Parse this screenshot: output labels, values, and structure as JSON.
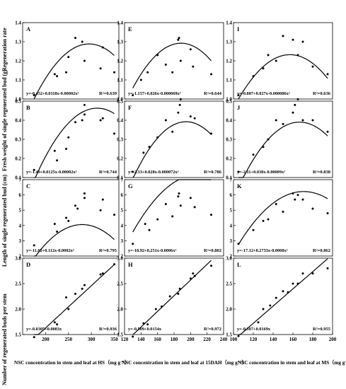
{
  "y_axis_labels": {
    "regeneration_rate": "Regeneration rate",
    "fresh_weight": "Fresh weight of single regenerated bud (g)",
    "length": "Length of single regenerated bud (cm)",
    "number": "Number of regenerated buds per stem"
  },
  "x_axis_labels": {
    "hs": "NSC concentration in stem and leaf at HS（mg g⁻¹）",
    "dah": "NSC concentration in stem and leaf at 15DAH（mg g⁻¹）",
    "ms": "NSC concentration in stem and leaf at MS（mg g⁻¹）"
  },
  "chart_data": [
    {
      "panel": "A",
      "type": "scatter",
      "row": 0,
      "col": 0,
      "xlim": [
        150,
        360
      ],
      "ylim": [
        1.0,
        1.4
      ],
      "yticks": [
        "1.0",
        "1.1",
        "1.2",
        "1.3",
        "1.4"
      ],
      "fit": [
        -0.452,
        0.0118,
        -2e-05
      ],
      "equation": "y=-0.452+0.0118x-0.00002x²",
      "r2": "R²=0.639",
      "points": [
        [
          175,
          1.02
        ],
        [
          220,
          1.13
        ],
        [
          225,
          1.12
        ],
        [
          245,
          1.14
        ],
        [
          250,
          1.22
        ],
        [
          265,
          1.32
        ],
        [
          280,
          1.3
        ],
        [
          285,
          1.2
        ],
        [
          320,
          1.16
        ],
        [
          325,
          1.27
        ],
        [
          350,
          1.14
        ]
      ]
    },
    {
      "panel": "E",
      "type": "scatter",
      "row": 0,
      "col": 1,
      "xlim": [
        120,
        240
      ],
      "ylim": [
        1.0,
        1.4
      ],
      "yticks": [
        "1.0",
        "1.1",
        "1.2",
        "1.3",
        "1.4"
      ],
      "fit": [
        -1.157,
        0.026,
        -6.9e-05
      ],
      "equation": "y=-1.157+0.026x-0.000069x²",
      "r2": "R²=0.644",
      "points": [
        [
          130,
          1.02
        ],
        [
          140,
          1.1
        ],
        [
          148,
          1.14
        ],
        [
          160,
          1.23
        ],
        [
          170,
          1.18
        ],
        [
          178,
          1.14
        ],
        [
          185,
          1.31
        ],
        [
          186,
          1.32
        ],
        [
          188,
          1.2
        ],
        [
          200,
          1.26
        ],
        [
          203,
          1.17
        ],
        [
          225,
          1.13
        ]
      ]
    },
    {
      "panel": "I",
      "type": "scatter",
      "row": 0,
      "col": 2,
      "xlim": [
        100,
        200
      ],
      "ylim": [
        1.0,
        1.4
      ],
      "yticks": [
        "1.0",
        "1.1",
        "1.2",
        "1.3",
        "1.4"
      ],
      "fit": [
        -0.887,
        0.027,
        -8.6e-05
      ],
      "equation": "y=-0.887+0.027x-0.000086x²",
      "r2": "R²=0.636",
      "points": [
        [
          105,
          1.02
        ],
        [
          120,
          1.12
        ],
        [
          130,
          1.16
        ],
        [
          135,
          1.23
        ],
        [
          143,
          1.2
        ],
        [
          150,
          1.33
        ],
        [
          160,
          1.31
        ],
        [
          165,
          1.23
        ],
        [
          170,
          1.3
        ],
        [
          180,
          1.17
        ],
        [
          195,
          1.13
        ]
      ]
    },
    {
      "panel": "B",
      "type": "scatter",
      "row": 1,
      "col": 0,
      "xlim": [
        150,
        360
      ],
      "ylim": [
        0.1,
        0.5
      ],
      "yticks": [
        "0.1",
        "0.2",
        "0.3",
        "0.4",
        "0.5"
      ],
      "fit": [
        -1.49,
        0.0125,
        -2e-05
      ],
      "equation": "y=-1.49+0.0125x-0.00002x²",
      "r2": "R²=0.744",
      "points": [
        [
          175,
          0.14
        ],
        [
          220,
          0.24
        ],
        [
          225,
          0.19
        ],
        [
          245,
          0.25
        ],
        [
          250,
          0.31
        ],
        [
          265,
          0.39
        ],
        [
          280,
          0.4
        ],
        [
          285,
          0.43
        ],
        [
          285,
          0.48
        ],
        [
          320,
          0.4
        ],
        [
          325,
          0.41
        ],
        [
          350,
          0.33
        ]
      ]
    },
    {
      "panel": "F",
      "type": "scatter",
      "row": 1,
      "col": 1,
      "xlim": [
        120,
        240
      ],
      "ylim": [
        0.1,
        0.5
      ],
      "yticks": [
        "0.1",
        "0.2",
        "0.3",
        "0.4",
        "0.5"
      ],
      "fit": [
        -2.33,
        0.028,
        -7.2e-05
      ],
      "equation": "y=-2.33+0.028x-0.000072x²",
      "r2": "R²=0.786",
      "points": [
        [
          130,
          0.13
        ],
        [
          143,
          0.23
        ],
        [
          150,
          0.26
        ],
        [
          160,
          0.31
        ],
        [
          170,
          0.4
        ],
        [
          178,
          0.34
        ],
        [
          185,
          0.44
        ],
        [
          187,
          0.48
        ],
        [
          188,
          0.51
        ],
        [
          200,
          0.42
        ],
        [
          205,
          0.41
        ],
        [
          225,
          0.33
        ]
      ]
    },
    {
      "panel": "J",
      "type": "scatter",
      "row": 1,
      "col": 2,
      "xlim": [
        100,
        200
      ],
      "ylim": [
        0.1,
        0.5
      ],
      "yticks": [
        "0.1",
        "0.2",
        "0.3",
        "0.4",
        "0.5"
      ],
      "fit": [
        -2.11,
        0.03,
        -9e-05
      ],
      "equation": "y=-2.11+0.030x-0.00009x²",
      "r2": "R²=0.838",
      "points": [
        [
          105,
          0.13
        ],
        [
          120,
          0.22
        ],
        [
          130,
          0.26
        ],
        [
          135,
          0.3
        ],
        [
          143,
          0.4
        ],
        [
          150,
          0.38
        ],
        [
          160,
          0.44
        ],
        [
          162,
          0.48
        ],
        [
          165,
          0.51
        ],
        [
          170,
          0.4
        ],
        [
          180,
          0.4
        ],
        [
          195,
          0.34
        ]
      ]
    },
    {
      "panel": "C",
      "type": "scatter",
      "row": 2,
      "col": 0,
      "xlim": [
        150,
        360
      ],
      "ylim": [
        2,
        7
      ],
      "yticks": [
        "2",
        "3",
        "4",
        "5",
        "6",
        "7"
      ],
      "fit": [
        -11.62,
        0.112,
        -0.0002
      ],
      "equation": "y=-11.62+0.112x-0.0002x²",
      "r2": "R²=0.795",
      "points": [
        [
          175,
          2.7
        ],
        [
          220,
          4.1
        ],
        [
          225,
          3.6
        ],
        [
          245,
          4.5
        ],
        [
          250,
          4.3
        ],
        [
          265,
          5.3
        ],
        [
          270,
          5.1
        ],
        [
          285,
          5.8
        ],
        [
          285,
          6.1
        ],
        [
          320,
          5.0
        ],
        [
          325,
          5.7
        ],
        [
          350,
          4.7
        ]
      ]
    },
    {
      "panel": "G",
      "type": "scatter",
      "row": 2,
      "col": 1,
      "xlim": [
        120,
        240
      ],
      "ylim": [
        2,
        7
      ],
      "yticks": [
        "2",
        "3",
        "4",
        "5",
        "6",
        "7"
      ],
      "fit": [
        -18.92,
        0.251,
        -0.0006
      ],
      "equation": "y=-18.92+0.251x-0.0006x²",
      "r2": "R²=0.802",
      "points": [
        [
          130,
          2.8
        ],
        [
          145,
          4.1
        ],
        [
          150,
          3.7
        ],
        [
          160,
          4.4
        ],
        [
          170,
          5.4
        ],
        [
          178,
          4.6
        ],
        [
          185,
          5.9
        ],
        [
          186,
          6.1
        ],
        [
          188,
          5.3
        ],
        [
          200,
          5.8
        ],
        [
          205,
          5.2
        ],
        [
          225,
          4.7
        ]
      ]
    },
    {
      "panel": "K",
      "type": "scatter",
      "row": 2,
      "col": 2,
      "xlim": [
        100,
        200
      ],
      "ylim": [
        2,
        7
      ],
      "yticks": [
        "2",
        "3",
        "4",
        "5",
        "6",
        "7"
      ],
      "fit": [
        -17.12,
        0.2733,
        -0.0008
      ],
      "equation": "y=-17.12+0.2733x-0.0008x²",
      "r2": "R²=0.862",
      "points": [
        [
          105,
          2.8
        ],
        [
          120,
          3.7
        ],
        [
          130,
          4.3
        ],
        [
          135,
          4.4
        ],
        [
          143,
          5.4
        ],
        [
          150,
          4.9
        ],
        [
          160,
          6.1
        ],
        [
          162,
          5.7
        ],
        [
          165,
          6.0
        ],
        [
          170,
          5.7
        ],
        [
          180,
          5.1
        ],
        [
          195,
          4.8
        ]
      ]
    },
    {
      "panel": "D",
      "type": "scatter",
      "row": 3,
      "col": 0,
      "xlim": [
        150,
        360
      ],
      "ylim": [
        1.5,
        3.0
      ],
      "yticks": [
        "1.5",
        "2.0",
        "2.5",
        "3.0"
      ],
      "xticks": [
        200,
        250,
        300,
        350
      ],
      "fit": [
        -0.0305,
        0.0083
      ],
      "equation": "y=-0.0305+0.0083x",
      "r2": "R²=0.936",
      "points": [
        [
          175,
          1.45
        ],
        [
          220,
          1.74
        ],
        [
          225,
          1.7
        ],
        [
          245,
          2.23
        ],
        [
          250,
          2.0
        ],
        [
          265,
          2.3
        ],
        [
          280,
          2.4
        ],
        [
          285,
          2.47
        ],
        [
          320,
          2.68
        ],
        [
          325,
          2.7
        ],
        [
          350,
          2.88
        ]
      ]
    },
    {
      "panel": "H",
      "type": "scatter",
      "row": 3,
      "col": 1,
      "xlim": [
        120,
        240
      ],
      "ylim": [
        1.5,
        3.0
      ],
      "yticks": [
        "1.5",
        "2.0",
        "2.5",
        "3.0"
      ],
      "xticks": [
        120,
        140,
        160,
        180,
        200,
        220,
        240
      ],
      "fit": [
        -0.509,
        0.0154
      ],
      "equation": "y=-0.509+0.0154x",
      "r2": "R²=0.972",
      "points": [
        [
          130,
          1.46
        ],
        [
          143,
          1.72
        ],
        [
          148,
          1.7
        ],
        [
          158,
          2.0
        ],
        [
          165,
          2.05
        ],
        [
          175,
          2.25
        ],
        [
          185,
          2.3
        ],
        [
          187,
          2.4
        ],
        [
          200,
          2.6
        ],
        [
          203,
          2.7
        ],
        [
          205,
          2.65
        ],
        [
          225,
          2.85
        ]
      ]
    },
    {
      "panel": "L",
      "type": "scatter",
      "row": 3,
      "col": 2,
      "xlim": [
        100,
        200
      ],
      "ylim": [
        1.5,
        3.0
      ],
      "yticks": [
        "1.5",
        "2.0",
        "2.5",
        "3.0"
      ],
      "xticks": [
        100,
        120,
        140,
        160,
        180,
        200
      ],
      "fit": [
        -0.307,
        0.0169
      ],
      "equation": "y=-0.307+0.0169x",
      "r2": "R²=0.955",
      "points": [
        [
          105,
          1.47
        ],
        [
          125,
          1.74
        ],
        [
          130,
          2.0
        ],
        [
          137,
          2.07
        ],
        [
          143,
          2.22
        ],
        [
          150,
          2.35
        ],
        [
          155,
          2.33
        ],
        [
          160,
          2.5
        ],
        [
          165,
          2.5
        ],
        [
          170,
          2.7
        ],
        [
          180,
          2.7
        ],
        [
          195,
          2.8
        ]
      ]
    }
  ]
}
